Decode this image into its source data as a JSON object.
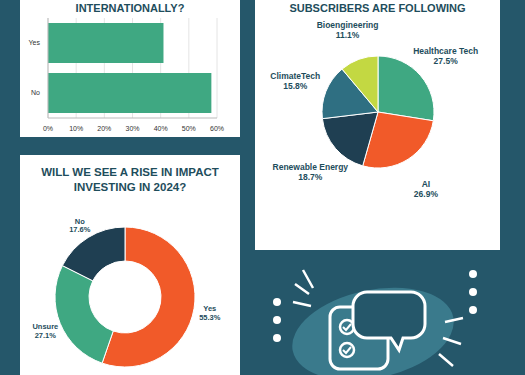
{
  "chart_data": [
    {
      "type": "bar",
      "title": "INTERNATIONALLY?",
      "orientation": "horizontal",
      "categories": [
        "Yes",
        "No"
      ],
      "values": [
        41,
        58
      ],
      "color": "#3fa882",
      "xlim": [
        0,
        60
      ],
      "xticks": [
        {
          "value": 0,
          "label": "0%"
        },
        {
          "value": 10,
          "label": "10%"
        },
        {
          "value": 20,
          "label": "20%"
        },
        {
          "value": 30,
          "label": "30%"
        },
        {
          "value": 40,
          "label": "40%"
        },
        {
          "value": 50,
          "label": "50%"
        },
        {
          "value": 60,
          "label": "60%"
        }
      ],
      "grid": true
    },
    {
      "type": "pie",
      "title": "SUBSCRIBERS ARE FOLLOWING",
      "categories": [
        "Healthcare Tech",
        "AI",
        "Renewable Energy",
        "ClimateTech",
        "Bioengineering"
      ],
      "values": [
        27.5,
        26.9,
        18.7,
        15.8,
        11.1
      ],
      "value_labels": [
        "27.5%",
        "26.9%",
        "18.7%",
        "15.8%",
        "11.1%"
      ],
      "colors": [
        "#3fa882",
        "#f15a29",
        "#1f3f52",
        "#2f6f82",
        "#c3d842"
      ],
      "data_labels": true
    },
    {
      "type": "donut",
      "title": "WILL WE SEE A RISE IN IMPACT INVESTING IN 2024?",
      "categories": [
        "Yes",
        "Unsure",
        "No"
      ],
      "values": [
        55.3,
        27.1,
        17.6
      ],
      "value_labels": [
        "55.3%",
        "27.1%",
        "17.6%"
      ],
      "colors": [
        "#f15a29",
        "#3fa882",
        "#1f3f52"
      ],
      "data_labels": true
    }
  ]
}
